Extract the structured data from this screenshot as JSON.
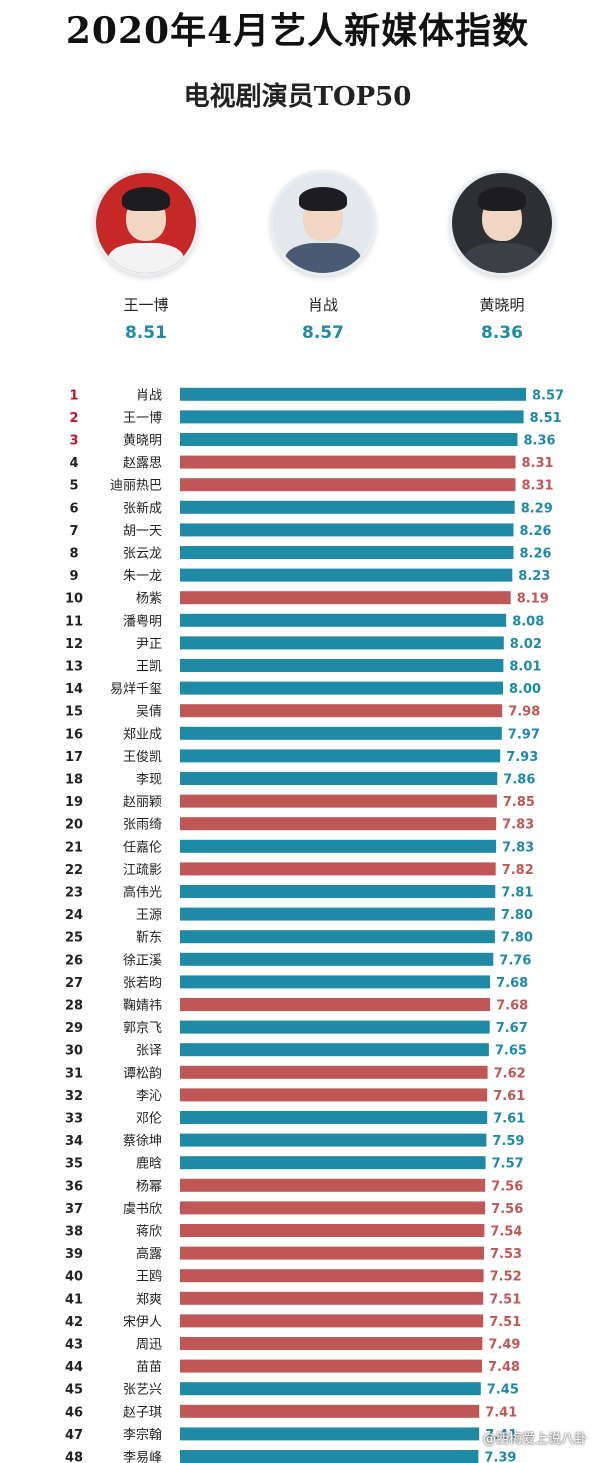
{
  "header": {
    "title": "2020年4月艺人新媒体指数",
    "subtitle": "电视剧演员TOP50"
  },
  "podium": [
    {
      "name": "王一博",
      "score": "8.51"
    },
    {
      "name": "肖战",
      "score": "8.57"
    },
    {
      "name": "黄晓明",
      "score": "8.36"
    }
  ],
  "colors": {
    "male": "#1f8aa6",
    "female": "#c05757",
    "rank_top": "#c8102e",
    "rank_other": "#222222",
    "score_male": "#1f8aa6",
    "score_female": "#c05757"
  },
  "chart_data": {
    "type": "bar",
    "orientation": "horizontal",
    "title": "电视剧演员TOP50",
    "xlim": [
      0,
      8.57
    ],
    "ranks": [
      1,
      2,
      3,
      4,
      5,
      6,
      7,
      8,
      9,
      10,
      11,
      12,
      13,
      14,
      15,
      16,
      17,
      18,
      19,
      20,
      21,
      22,
      23,
      24,
      25,
      26,
      27,
      28,
      29,
      30,
      31,
      32,
      33,
      34,
      35,
      36,
      37,
      38,
      39,
      40,
      41,
      42,
      43,
      44,
      45,
      46,
      47,
      48
    ],
    "categories": [
      "肖战",
      "王一博",
      "黄晓明",
      "赵露思",
      "迪丽热巴",
      "张新成",
      "胡一天",
      "张云龙",
      "朱一龙",
      "杨紫",
      "潘粤明",
      "尹正",
      "王凯",
      "易烊千玺",
      "吴倩",
      "郑业成",
      "王俊凯",
      "李现",
      "赵丽颖",
      "张雨绮",
      "任嘉伦",
      "江疏影",
      "高伟光",
      "王源",
      "靳东",
      "徐正溪",
      "张若昀",
      "鞠婧祎",
      "郭京飞",
      "张译",
      "谭松韵",
      "李沁",
      "邓伦",
      "蔡徐坤",
      "鹿晗",
      "杨幂",
      "虞书欣",
      "蒋欣",
      "高露",
      "王鸥",
      "郑爽",
      "宋伊人",
      "周迅",
      "苗苗",
      "张艺兴",
      "赵子琪",
      "李宗翰",
      "李易峰"
    ],
    "values": [
      8.57,
      8.51,
      8.36,
      8.31,
      8.31,
      8.29,
      8.26,
      8.26,
      8.23,
      8.19,
      8.08,
      8.02,
      8.01,
      8.0,
      7.98,
      7.97,
      7.93,
      7.86,
      7.85,
      7.83,
      7.83,
      7.82,
      7.81,
      7.8,
      7.8,
      7.76,
      7.68,
      7.68,
      7.67,
      7.65,
      7.62,
      7.61,
      7.61,
      7.59,
      7.57,
      7.56,
      7.56,
      7.54,
      7.53,
      7.52,
      7.51,
      7.51,
      7.49,
      7.48,
      7.45,
      7.41,
      7.41,
      7.39
    ],
    "value_labels": [
      "8.57",
      "8.51",
      "8.36",
      "8.31",
      "8.31",
      "8.29",
      "8.26",
      "8.26",
      "8.23",
      "8.19",
      "8.08",
      "8.02",
      "8.01",
      "8.00",
      "7.98",
      "7.97",
      "7.93",
      "7.86",
      "7.85",
      "7.83",
      "7.83",
      "7.82",
      "7.81",
      "7.80",
      "7.80",
      "7.76",
      "7.68",
      "7.68",
      "7.67",
      "7.65",
      "7.62",
      "7.61",
      "7.61",
      "7.59",
      "7.57",
      "7.56",
      "7.56",
      "7.54",
      "7.53",
      "7.52",
      "7.51",
      "7.51",
      "7.49",
      "7.48",
      "7.45",
      "7.41",
      "7.41",
      "7.39"
    ],
    "groups": [
      "m",
      "m",
      "m",
      "f",
      "f",
      "m",
      "m",
      "m",
      "m",
      "f",
      "m",
      "m",
      "m",
      "m",
      "f",
      "m",
      "m",
      "m",
      "f",
      "f",
      "m",
      "f",
      "m",
      "m",
      "m",
      "m",
      "m",
      "f",
      "m",
      "m",
      "f",
      "f",
      "m",
      "m",
      "m",
      "f",
      "f",
      "f",
      "f",
      "f",
      "f",
      "f",
      "f",
      "f",
      "m",
      "f",
      "m",
      "m"
    ]
  },
  "watermark": "@西梅爱上说八卦"
}
